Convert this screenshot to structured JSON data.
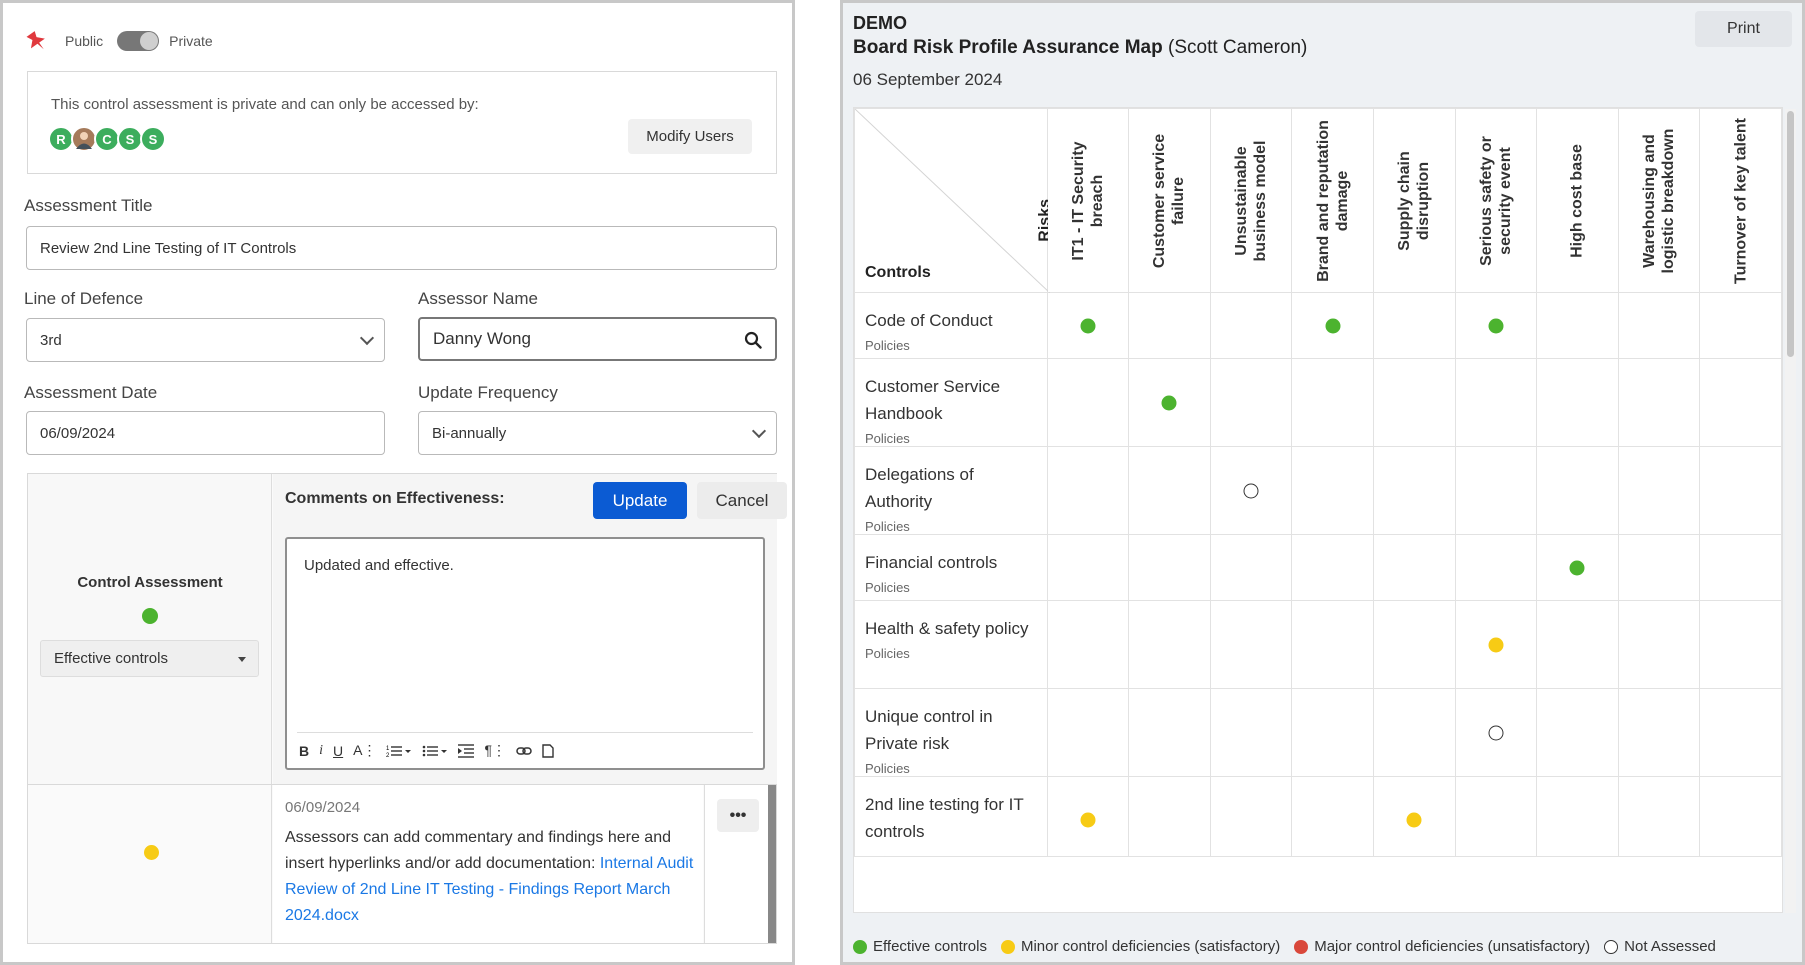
{
  "assessment": {
    "visibility": {
      "public_label": "Public",
      "private_label": "Private",
      "state": "private"
    },
    "access": {
      "message": "This control assessment is private and can only be accessed by:",
      "users": [
        "R",
        "photo",
        "C",
        "S",
        "S"
      ],
      "modify_label": "Modify Users"
    },
    "title_label": "Assessment Title",
    "title_value": "Review 2nd Line Testing of IT Controls",
    "line_of_defence_label": "Line of Defence",
    "line_of_defence_value": "3rd",
    "assessor_label": "Assessor Name",
    "assessor_value": "Danny Wong",
    "date_label": "Assessment Date",
    "date_value": "06/09/2024",
    "frequency_label": "Update Frequency",
    "frequency_value": "Bi-annually",
    "control_assessment": {
      "title": "Control Assessment",
      "status": "Effective controls",
      "status_color": "#4cb32f"
    },
    "comments": {
      "label": "Comments on Effectiveness:",
      "update_label": "Update",
      "cancel_label": "Cancel",
      "text": "Updated and effective.",
      "toolbar": [
        "bold",
        "italic",
        "underline",
        "font-size",
        "ordered-list",
        "bullet-list",
        "indent",
        "paragraph",
        "link",
        "document"
      ]
    },
    "note": {
      "date": "06/09/2024",
      "text": "Assessors can add commentary and findings here and insert hyperlinks and/or add documentation:",
      "link": "Internal Audit Review of 2nd Line IT Testing - Findings Report March 2024.docx",
      "status_color": "#f7cb15",
      "more_label": "•••"
    }
  },
  "map": {
    "org": "DEMO",
    "title": "Board Risk Profile Assurance Map",
    "owner": "(Scott Cameron)",
    "date": "06 September 2024",
    "print_label": "Print",
    "risks_label": "Risks",
    "controls_label": "Controls",
    "risks": [
      "IT1 - IT Security breach",
      "Customer service failure",
      "Unsustainable business model",
      "Brand and reputation damage",
      "Supply chain disruption",
      "Serious safety or security event",
      "High cost base",
      "Warehousing and logistic breakdown",
      "Turnover of key talent"
    ],
    "controls": [
      {
        "name": "Code of Conduct",
        "type": "Policies",
        "cells": [
          "effective",
          "",
          "",
          "effective",
          "",
          "effective",
          "",
          "",
          ""
        ]
      },
      {
        "name": "Customer Service Handbook",
        "type": "Policies",
        "cells": [
          "",
          "effective",
          "",
          "",
          "",
          "",
          "",
          "",
          ""
        ]
      },
      {
        "name": "Delegations of Authority",
        "type": "Policies",
        "cells": [
          "",
          "",
          "not-assessed",
          "",
          "",
          "",
          "",
          "",
          ""
        ]
      },
      {
        "name": "Financial controls",
        "type": "Policies",
        "cells": [
          "",
          "",
          "",
          "",
          "",
          "",
          "effective",
          "",
          ""
        ]
      },
      {
        "name": "Health & safety policy",
        "type": "Policies",
        "cells": [
          "",
          "",
          "",
          "",
          "",
          "minor",
          "",
          "",
          ""
        ]
      },
      {
        "name": "Unique control in Private risk",
        "type": "Policies",
        "cells": [
          "",
          "",
          "",
          "",
          "",
          "not-assessed",
          "",
          "",
          ""
        ]
      },
      {
        "name": "2nd line testing for IT controls",
        "type": "",
        "cells": [
          "minor",
          "",
          "",
          "",
          "minor",
          "",
          "",
          "",
          ""
        ]
      }
    ],
    "legend": [
      {
        "key": "effective",
        "label": "Effective controls",
        "color": "#4cb32f"
      },
      {
        "key": "minor",
        "label": "Minor control deficiencies (satisfactory)",
        "color": "#f7cb15"
      },
      {
        "key": "major",
        "label": "Major control deficiencies (unsatisfactory)",
        "color": "#d9483b"
      },
      {
        "key": "not-assessed",
        "label": "Not Assessed",
        "color": "#ffffff"
      }
    ]
  }
}
